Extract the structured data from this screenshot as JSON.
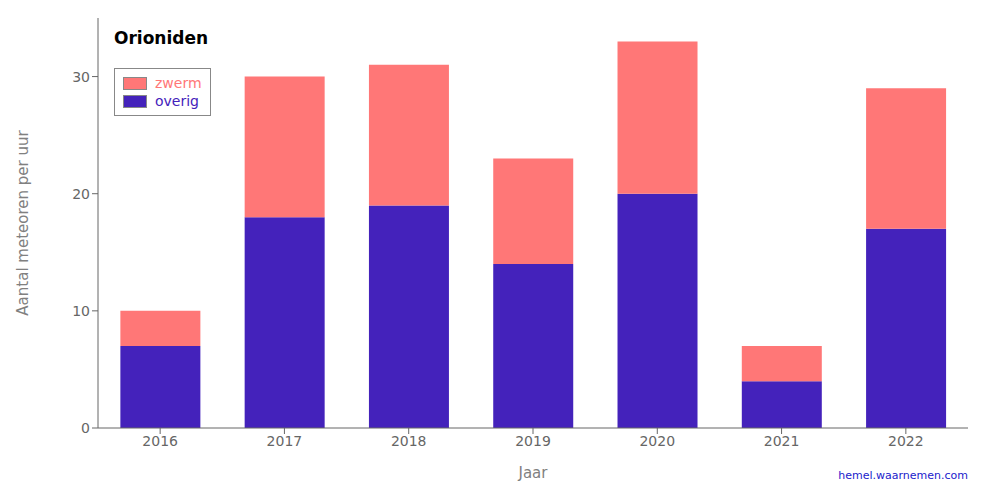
{
  "chart_data": {
    "type": "bar",
    "title": "Orioniden",
    "x_label": "Jaar",
    "y_label": "Aantal meteoren per uur",
    "categories": [
      "2016",
      "2017",
      "2018",
      "2019",
      "2020",
      "2021",
      "2022"
    ],
    "series": [
      {
        "name": "overig",
        "color": "#4422BB",
        "values": [
          7,
          18,
          19,
          14,
          20,
          4,
          17
        ]
      },
      {
        "name": "zwerm",
        "color": "#FF7777",
        "values": [
          3,
          12,
          12,
          9,
          13,
          3,
          12
        ]
      }
    ],
    "stacked": true,
    "ylim": [
      0,
      35
    ],
    "yticks": [
      0,
      10,
      20,
      30
    ],
    "grid": false,
    "legend": "upper left",
    "annotations": [
      {
        "text": "hemel.waarnemen.com",
        "color": "#2222CC"
      }
    ]
  }
}
